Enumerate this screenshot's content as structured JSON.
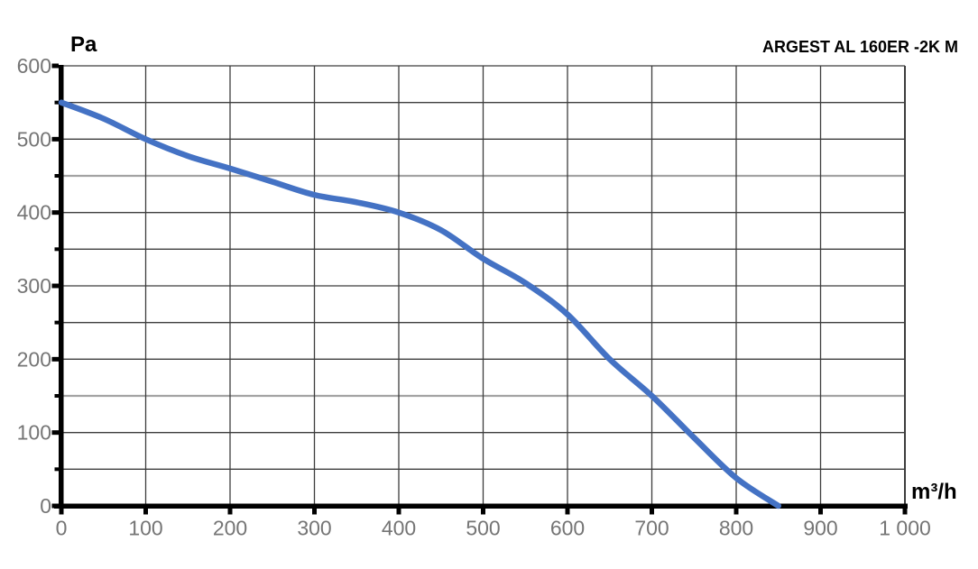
{
  "chart_data": {
    "type": "line",
    "title": "ARGEST AL 160ER -2K M",
    "xlabel": "m³/h",
    "ylabel": "Pa",
    "xlim": [
      0,
      1000
    ],
    "ylim": [
      0,
      600
    ],
    "grid": "on",
    "legend": "none",
    "x_ticks": [
      {
        "value": 0,
        "label": "0"
      },
      {
        "value": 100,
        "label": "100"
      },
      {
        "value": 200,
        "label": "200"
      },
      {
        "value": 300,
        "label": "300"
      },
      {
        "value": 400,
        "label": "400"
      },
      {
        "value": 500,
        "label": "500"
      },
      {
        "value": 600,
        "label": "600"
      },
      {
        "value": 700,
        "label": "700"
      },
      {
        "value": 800,
        "label": "800"
      },
      {
        "value": 900,
        "label": "900"
      },
      {
        "value": 1000,
        "label": "1 000"
      }
    ],
    "y_ticks": [
      {
        "value": 600,
        "label": "600"
      },
      {
        "value": 500,
        "label": "500"
      },
      {
        "value": 400,
        "label": "400"
      },
      {
        "value": 300,
        "label": "300"
      },
      {
        "value": 200,
        "label": "200"
      },
      {
        "value": 100,
        "label": "100"
      },
      {
        "value": 0,
        "label": "0"
      }
    ],
    "y_minor_step": 50,
    "x_gridline_step": 100,
    "light_horizontal_gridlines": [
      450,
      150
    ],
    "series": [
      {
        "name": "ARGEST AL 160ER -2K M pressure curve",
        "color": "#4472C4",
        "points": [
          [
            0,
            550
          ],
          [
            50,
            528
          ],
          [
            100,
            500
          ],
          [
            150,
            477
          ],
          [
            200,
            460
          ],
          [
            250,
            442
          ],
          [
            300,
            424
          ],
          [
            350,
            414
          ],
          [
            400,
            400
          ],
          [
            450,
            376
          ],
          [
            500,
            337
          ],
          [
            550,
            304
          ],
          [
            600,
            261
          ],
          [
            650,
            200
          ],
          [
            700,
            150
          ],
          [
            750,
            93
          ],
          [
            800,
            38
          ],
          [
            850,
            0
          ]
        ]
      }
    ]
  },
  "colors": {
    "curve": "#4472C4",
    "gridline": "#3d3d3d",
    "gridline_light": "#a3a3a3",
    "axis": "#000000",
    "tick_label": "#757575",
    "text": "#000000",
    "background": "#ffffff"
  }
}
